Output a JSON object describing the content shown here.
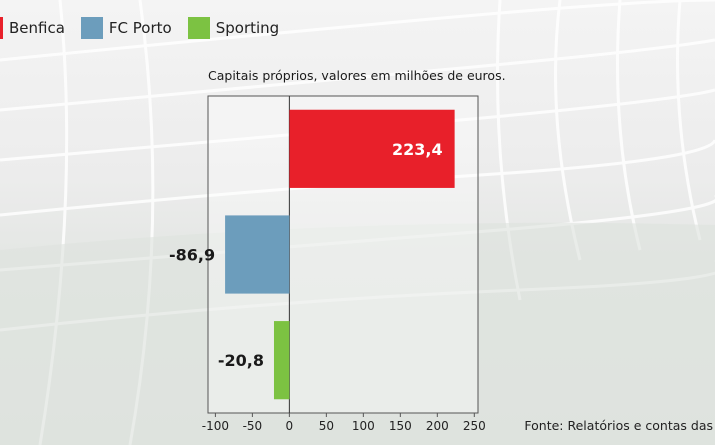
{
  "legend": [
    {
      "label": "Benfica",
      "color": "#e8202a"
    },
    {
      "label": "FC Porto",
      "color": "#6c9dbc"
    },
    {
      "label": "Sporting",
      "color": "#7cc242"
    }
  ],
  "subtitle": "Capitais próprios, valores em milhões de euros.",
  "source": "Fonte: Relatórios e contas das",
  "chart_data": {
    "type": "bar",
    "orientation": "horizontal",
    "categories": [
      "Benfica",
      "FC Porto",
      "Sporting"
    ],
    "values": [
      223.4,
      -86.9,
      -20.8
    ],
    "value_labels": [
      "223,4",
      "-86,9",
      "-20,8"
    ],
    "colors": [
      "#e8202a",
      "#6c9dbc",
      "#7cc242"
    ],
    "xlim": [
      -110,
      255
    ],
    "x_ticks": [
      -100,
      -50,
      0,
      50,
      100,
      150,
      200,
      250
    ],
    "x_tick_labels": [
      "-100",
      "-50",
      "0",
      "50",
      "100",
      "150",
      "200",
      "250"
    ],
    "grid": false
  }
}
